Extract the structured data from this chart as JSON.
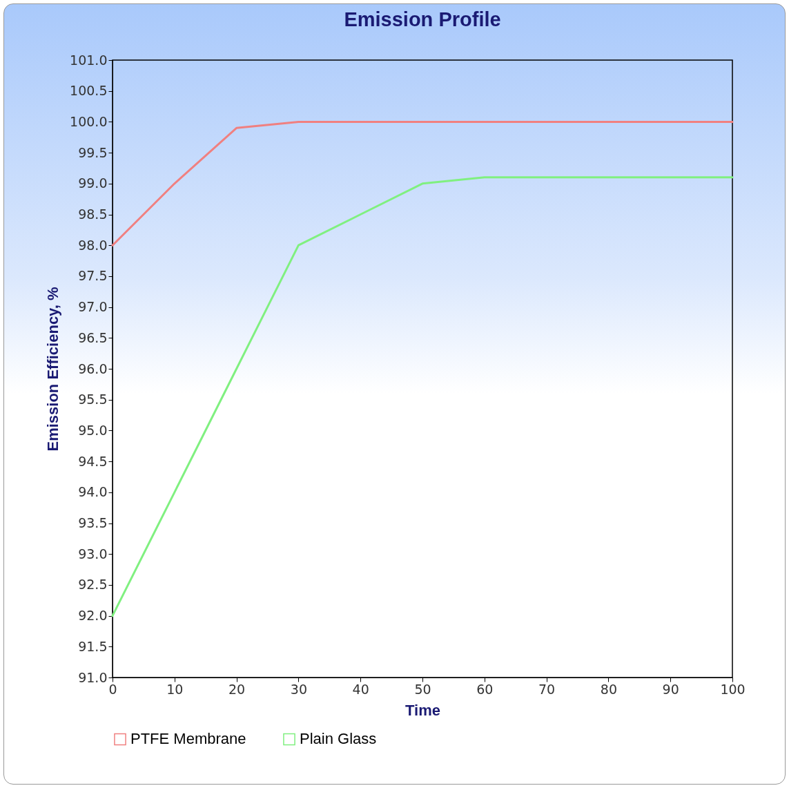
{
  "chart_data": {
    "type": "line",
    "title": "Emission Profile",
    "xlabel": "Time",
    "ylabel": "Emission Efficiency, %",
    "x": [
      0,
      10,
      20,
      30,
      40,
      50,
      60,
      70,
      80,
      90,
      100
    ],
    "series": [
      {
        "name": "PTFE Membrane",
        "color": "#f08080",
        "values": [
          98,
          99,
          99.9,
          100,
          100,
          100,
          100,
          100,
          100,
          100,
          100
        ]
      },
      {
        "name": "Plain Glass",
        "color": "#80f080",
        "values": [
          92,
          94,
          96,
          98,
          98.5,
          99,
          99.1,
          99.1,
          99.1,
          99.1,
          99.1
        ]
      }
    ],
    "xlim": [
      0,
      100
    ],
    "xticks": [
      0,
      10,
      20,
      30,
      40,
      50,
      60,
      70,
      80,
      90,
      100
    ],
    "ylim": [
      91,
      101
    ],
    "yticks": [
      {
        "value": 91,
        "label": "91.0"
      },
      {
        "value": 91.5,
        "label": "91.5"
      },
      {
        "value": 92,
        "label": "92.0"
      },
      {
        "value": 92.5,
        "label": "92.5"
      },
      {
        "value": 93,
        "label": "93.0"
      },
      {
        "value": 93.5,
        "label": "93.5"
      },
      {
        "value": 94,
        "label": "94.0"
      },
      {
        "value": 94.5,
        "label": "94.5"
      },
      {
        "value": 95,
        "label": "95.0"
      },
      {
        "value": 95.5,
        "label": "95.5"
      },
      {
        "value": 96,
        "label": "96.0"
      },
      {
        "value": 96.5,
        "label": "96.5"
      },
      {
        "value": 97,
        "label": "97.0"
      },
      {
        "value": 97.5,
        "label": "97.5"
      },
      {
        "value": 98,
        "label": "98.0"
      },
      {
        "value": 98.5,
        "label": "98.5"
      },
      {
        "value": 99,
        "label": "99.0"
      },
      {
        "value": 99.5,
        "label": "99.5"
      },
      {
        "value": 100,
        "label": "100.0"
      },
      {
        "value": 100.5,
        "label": "100.5"
      },
      {
        "value": 101,
        "label": "101.0"
      }
    ],
    "grid": false,
    "legend": "bottom",
    "marker": "none",
    "line_style": "solid"
  }
}
